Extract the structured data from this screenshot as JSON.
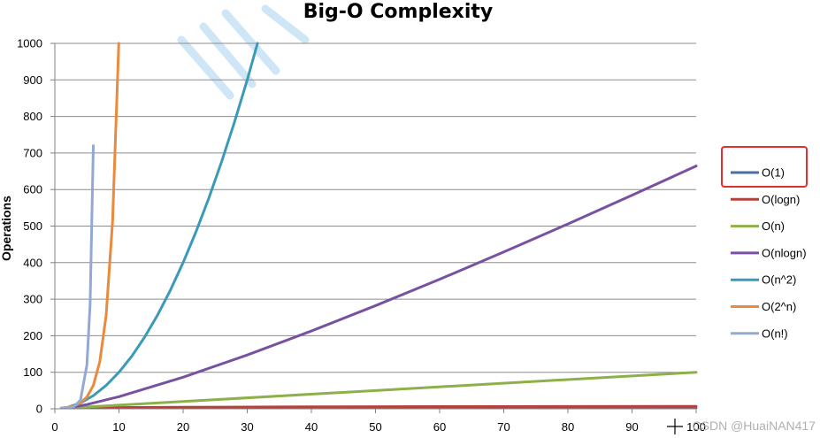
{
  "chart_data": {
    "type": "line",
    "title": "Big-O Complexity",
    "xlabel": "",
    "ylabel": "Operations",
    "xlim": [
      0,
      100
    ],
    "ylim": [
      0,
      1000
    ],
    "x_ticks": [
      "0",
      "10",
      "20",
      "30",
      "40",
      "50",
      "60",
      "70",
      "80",
      "90",
      "100"
    ],
    "y_ticks": [
      "0",
      "100",
      "200",
      "300",
      "400",
      "500",
      "600",
      "700",
      "800",
      "900",
      "1000"
    ],
    "grid": "horizontal",
    "legend_position": "right",
    "series": [
      {
        "name": "O(1)",
        "color": "#4a6fa5",
        "x": [
          1,
          100
        ],
        "y": [
          1,
          1
        ]
      },
      {
        "name": "O(logn)",
        "color": "#b5403c",
        "x": [
          1,
          2,
          5,
          10,
          20,
          40,
          60,
          80,
          100
        ],
        "y": [
          0,
          1,
          2.3,
          3.3,
          4.3,
          5.3,
          5.9,
          6.3,
          6.6
        ]
      },
      {
        "name": "O(n)",
        "color": "#8db04a",
        "x": [
          1,
          100
        ],
        "y": [
          1,
          100
        ]
      },
      {
        "name": "O(nlogn)",
        "color": "#7851a0",
        "x": [
          1,
          2,
          5,
          10,
          20,
          30,
          40,
          50,
          60,
          70,
          80,
          90,
          100
        ],
        "y": [
          0,
          2,
          11.6,
          33.2,
          86.4,
          147.2,
          212.9,
          282.2,
          354.4,
          429.1,
          505.8,
          584.3,
          664.4
        ]
      },
      {
        "name": "O(n^2)",
        "color": "#3a9ab8",
        "x": [
          1,
          2,
          4,
          6,
          8,
          10,
          12,
          14,
          16,
          18,
          20,
          22,
          24,
          26,
          28,
          30,
          31.6
        ],
        "y": [
          1,
          4,
          16,
          36,
          64,
          100,
          144,
          196,
          256,
          324,
          400,
          484,
          576,
          676,
          784,
          900,
          1000
        ]
      },
      {
        "name": "O(2^n)",
        "color": "#e98a3c",
        "x": [
          1,
          2,
          3,
          4,
          5,
          6,
          7,
          8,
          9,
          9.97
        ],
        "y": [
          2,
          4,
          8,
          16,
          32,
          64,
          128,
          256,
          512,
          1000
        ]
      },
      {
        "name": "O(n!)",
        "color": "#93a9d3",
        "x": [
          1,
          2,
          3,
          4,
          5,
          5.5,
          6
        ],
        "y": [
          1,
          2,
          6,
          24,
          120,
          287,
          720
        ]
      }
    ],
    "highlighted_legend_item": "O(1)",
    "highlight_color": "#e03030"
  },
  "watermark": {
    "text": "CSDN @HuaiNAN417",
    "color": "#b0b0b0"
  }
}
